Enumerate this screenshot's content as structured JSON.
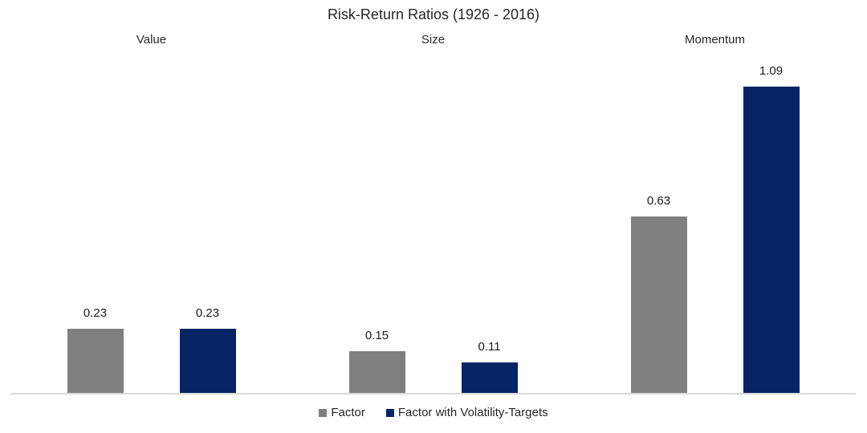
{
  "chart_data": {
    "type": "bar",
    "title": "Risk-Return Ratios (1926 - 2016)",
    "categories": [
      "Value",
      "Size",
      "Momentum"
    ],
    "series": [
      {
        "name": "Factor",
        "color": "#7f7f7f",
        "values": [
          0.23,
          0.15,
          0.63
        ]
      },
      {
        "name": "Factor with Volatility-Targets",
        "color": "#072564",
        "values": [
          0.23,
          0.11,
          1.09
        ]
      }
    ],
    "data_labels": [
      [
        "0.23",
        "0.15",
        "0.63"
      ],
      [
        "0.23",
        "0.11",
        "1.09"
      ]
    ],
    "xlabel": "",
    "ylabel": "",
    "ylim": [
      0,
      1.2
    ],
    "grid": false,
    "legend_position": "bottom",
    "axis_line_color": "#d9d9d9",
    "background_color": "#ffffff"
  }
}
